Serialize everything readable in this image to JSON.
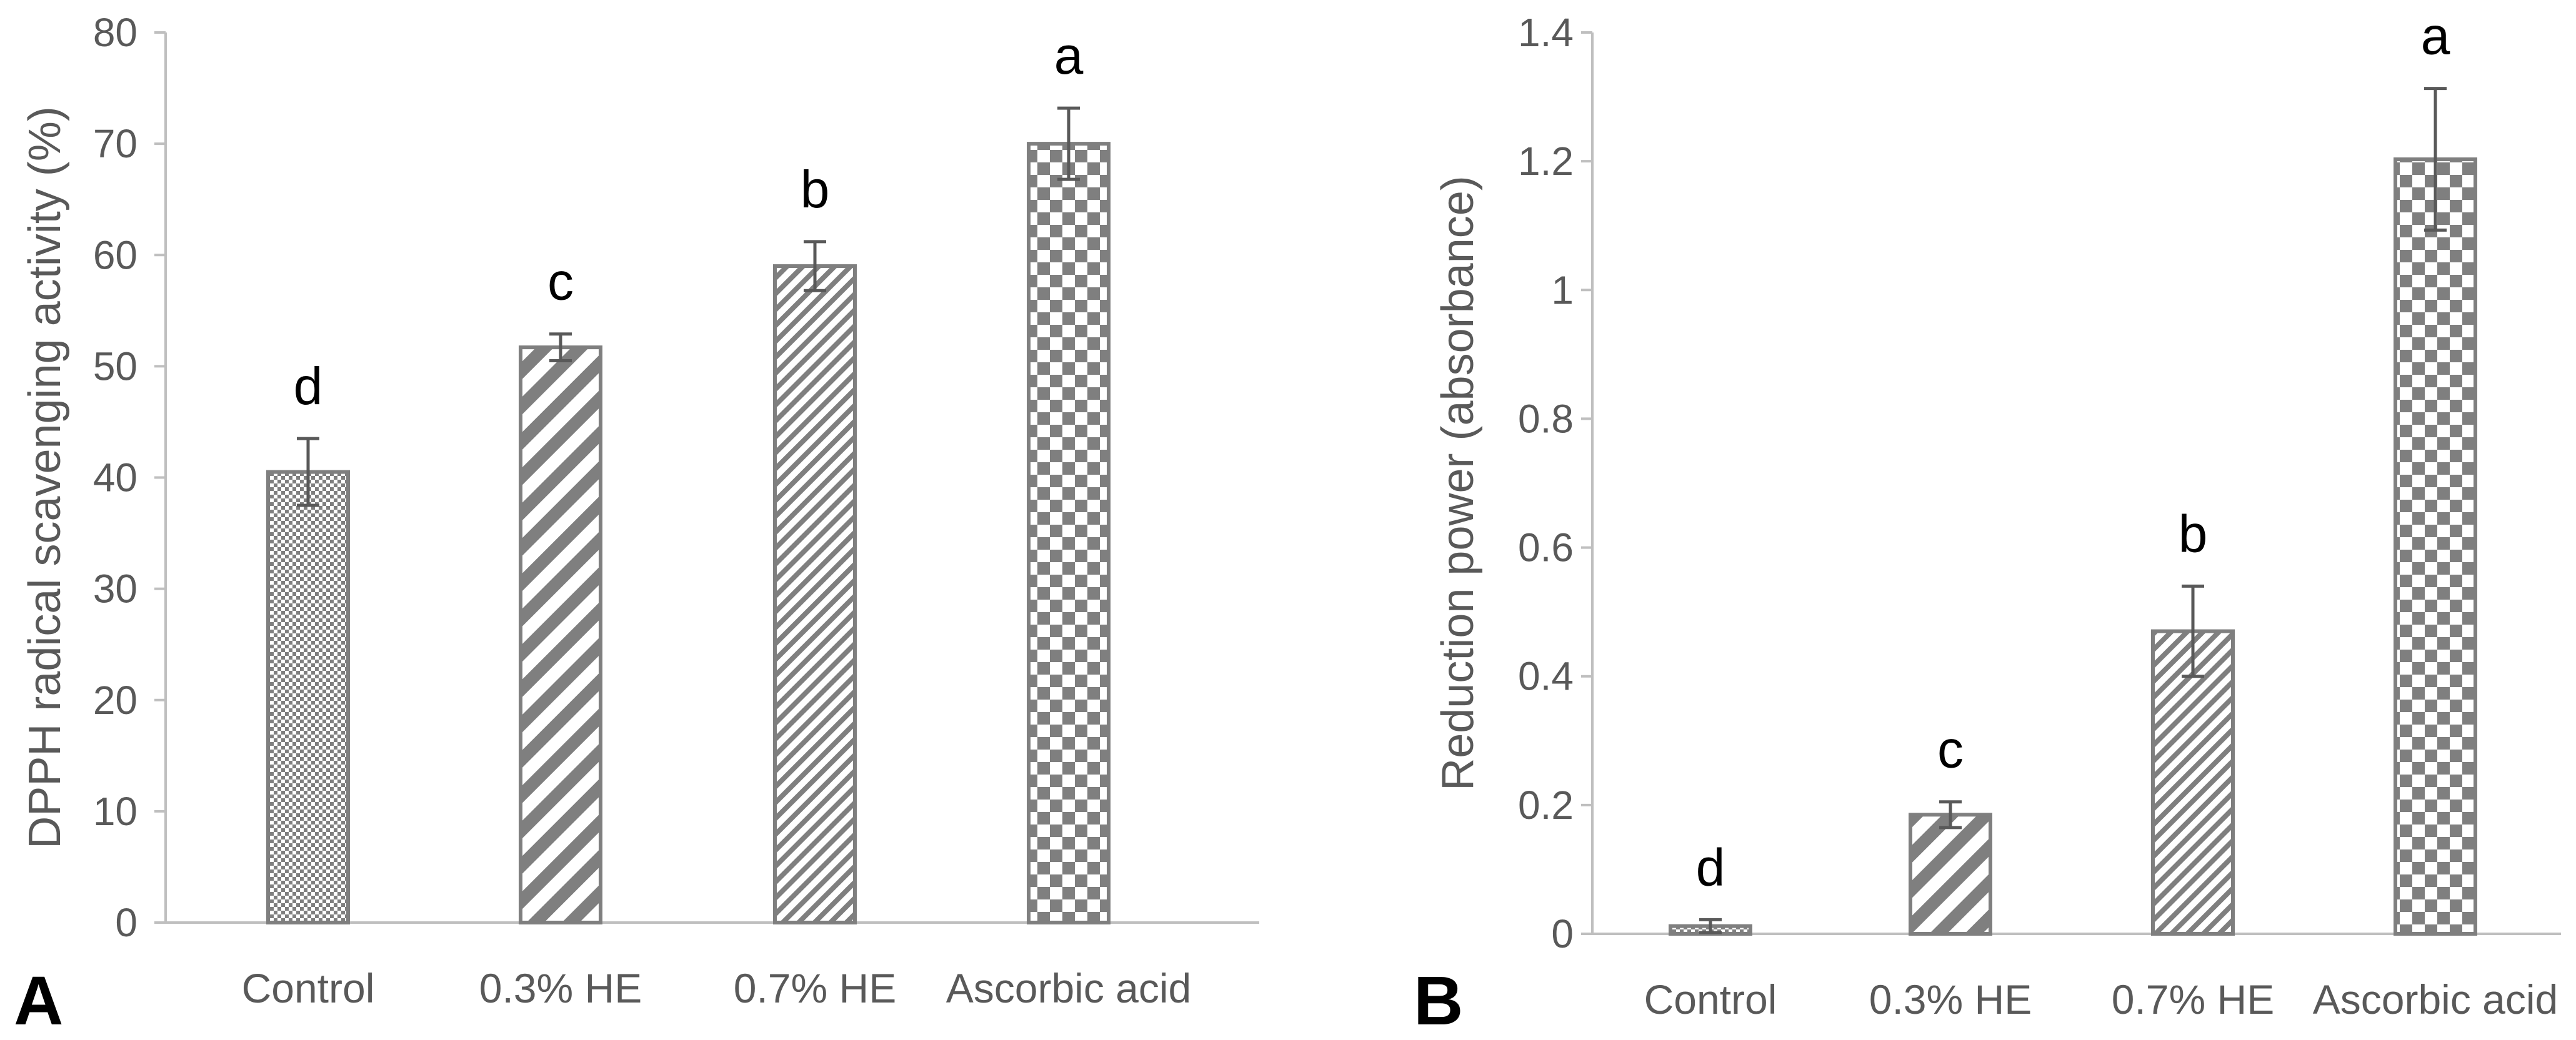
{
  "chart_data": [
    {
      "type": "bar",
      "panel_label": "A",
      "categories": [
        "Control",
        "0.3% HE",
        "0.7% HE",
        "Ascorbic acid"
      ],
      "values": [
        40.5,
        51.7,
        59.0,
        70.0
      ],
      "error": [
        3.0,
        1.2,
        2.2,
        3.2
      ],
      "significance_letters": [
        "d",
        "c",
        "b",
        "a"
      ],
      "ylabel": "DPPH radical scavenging activity (%)",
      "xlabel": "",
      "ylim": [
        0,
        80
      ],
      "yticks": [
        "0",
        "10",
        "20",
        "30",
        "40",
        "50",
        "60",
        "70",
        "80"
      ],
      "grid": false,
      "legend": "none",
      "bar_patterns": [
        "dots",
        "wide-diagonal",
        "fine-diagonal",
        "checker"
      ],
      "colors": {
        "bar": "#7f7f7f",
        "axis": "#bfbfbf",
        "error": "#595959",
        "text": "#595959"
      }
    },
    {
      "type": "bar",
      "panel_label": "B",
      "categories": [
        "Control",
        "0.3% HE",
        "0.7% HE",
        "Ascorbic acid"
      ],
      "values": [
        0.012,
        0.185,
        0.47,
        1.203
      ],
      "error": [
        0.01,
        0.02,
        0.07,
        0.11
      ],
      "significance_letters": [
        "d",
        "c",
        "b",
        "a"
      ],
      "ylabel": "Reduction power (absorbance)",
      "xlabel": "",
      "ylim": [
        0,
        1.4
      ],
      "yticks": [
        "0",
        "0.2",
        "0.4",
        "0.6",
        "0.8",
        "1",
        "1.2",
        "1.4"
      ],
      "grid": false,
      "legend": "none",
      "bar_patterns": [
        "dots",
        "wide-diagonal",
        "fine-diagonal",
        "checker"
      ],
      "colors": {
        "bar": "#7f7f7f",
        "axis": "#bfbfbf",
        "error": "#595959",
        "text": "#595959"
      }
    }
  ]
}
